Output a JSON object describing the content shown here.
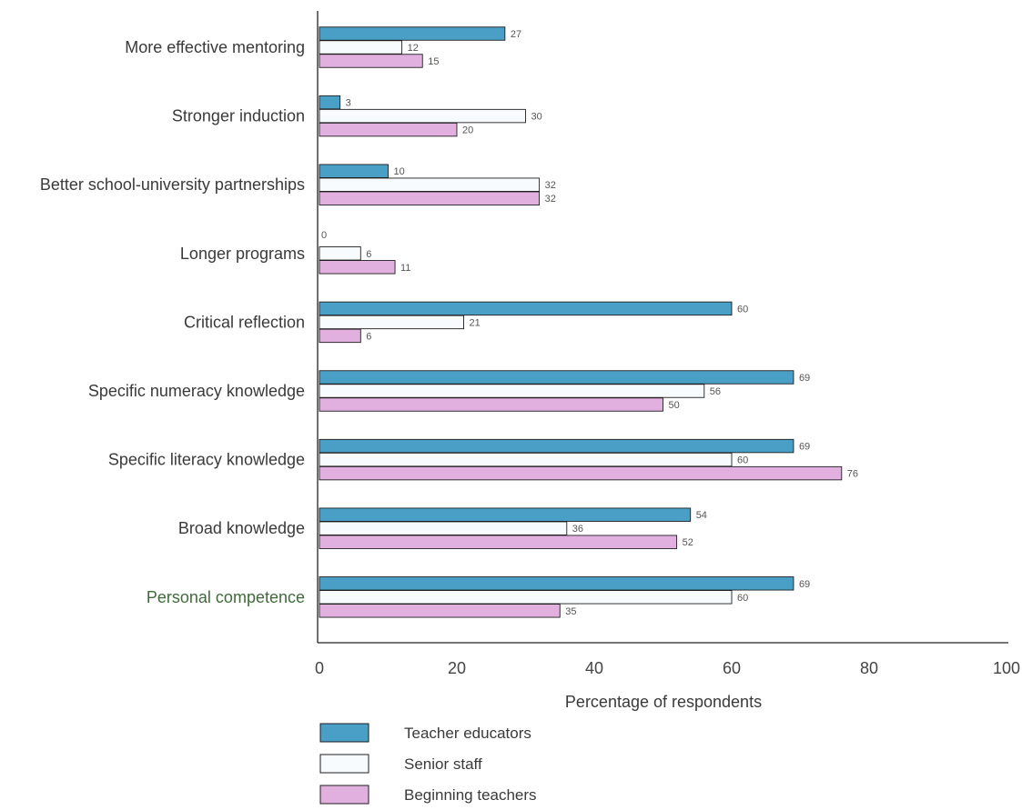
{
  "chart_data": {
    "type": "bar",
    "orientation": "horizontal",
    "categories": [
      "More effective mentoring",
      "Stronger induction",
      "Better school-university partnerships",
      "Longer programs",
      "Critical reflection",
      "Specific numeracy knowledge",
      "Specific literacy knowledge",
      "Broad knowledge",
      "Personal competence"
    ],
    "series": [
      {
        "name": "Teacher educators",
        "color": "#4a9fc6",
        "values": [
          27,
          3,
          10,
          0,
          60,
          69,
          69,
          54,
          69
        ]
      },
      {
        "name": "Senior staff",
        "color": "#f7fbfd",
        "values": [
          12,
          30,
          32,
          6,
          21,
          56,
          60,
          36,
          60
        ]
      },
      {
        "name": "Beginning teachers",
        "color": "#e2b0de",
        "values": [
          15,
          20,
          32,
          11,
          6,
          50,
          76,
          52,
          35
        ]
      }
    ],
    "xlabel": "Percentage of respondents",
    "xlim": [
      0,
      100
    ],
    "xticks": [
      "0",
      "20",
      "40",
      "60",
      "80",
      "100"
    ],
    "legend_position": "bottom-left",
    "highlight_category_color": "#3f6b3a"
  }
}
